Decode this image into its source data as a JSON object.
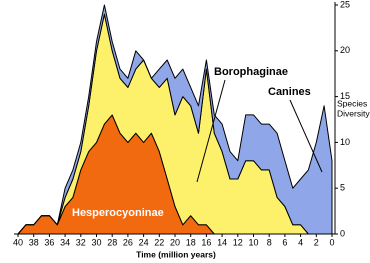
{
  "chart_data": {
    "type": "stacked-area",
    "x": [
      40,
      39,
      38,
      37,
      36,
      35,
      34,
      33,
      32,
      31,
      30,
      29,
      28,
      27,
      26,
      25,
      24,
      23,
      22,
      21,
      20,
      19,
      18,
      17,
      16,
      15,
      14,
      13,
      12,
      11,
      10,
      9,
      8,
      7,
      6,
      5,
      4,
      3,
      2,
      1,
      0
    ],
    "series": [
      {
        "name": "Hesperocyoninae",
        "color": "#f26a10",
        "values": [
          0,
          1,
          1,
          2,
          2,
          1,
          3,
          4,
          7,
          9,
          10,
          12,
          13,
          11,
          10,
          11,
          10,
          11,
          9,
          6,
          3,
          1,
          2,
          1,
          1,
          0,
          0,
          0,
          0,
          0,
          0,
          0,
          0,
          0,
          0,
          0,
          0,
          0,
          0,
          0,
          0
        ]
      },
      {
        "name": "Borophaginae",
        "color": "#fdf16c",
        "values": [
          0,
          0,
          0,
          0,
          0,
          0,
          1,
          2,
          2,
          5,
          10,
          12,
          7,
          6,
          6,
          7,
          9,
          6,
          7,
          11,
          10,
          14,
          12,
          10,
          17,
          11,
          9,
          6,
          6,
          8,
          8,
          7,
          7,
          4,
          3,
          1,
          1,
          0,
          0,
          0,
          0
        ]
      },
      {
        "name": "Canines",
        "color": "#8fa7e8",
        "values": [
          0,
          0,
          0,
          0,
          0,
          0,
          1,
          1,
          1,
          1,
          1,
          1,
          1,
          1,
          1,
          2,
          0,
          0,
          2,
          2,
          4,
          3,
          2,
          3,
          1,
          2,
          3,
          3,
          2,
          5,
          5,
          5,
          5,
          7,
          5,
          4,
          5,
          7,
          10,
          14,
          8
        ]
      }
    ],
    "xlim": [
      40,
      0
    ],
    "xticks": [
      40,
      38,
      36,
      34,
      32,
      30,
      28,
      26,
      24,
      22,
      20,
      18,
      16,
      14,
      12,
      10,
      8,
      6,
      4,
      2,
      0
    ],
    "ylim": [
      0,
      25
    ],
    "yticks": [
      0,
      5,
      10,
      15,
      20,
      25
    ],
    "xlabel": "Time (million years)",
    "ylabel": [
      "Species",
      "Diversity"
    ]
  }
}
